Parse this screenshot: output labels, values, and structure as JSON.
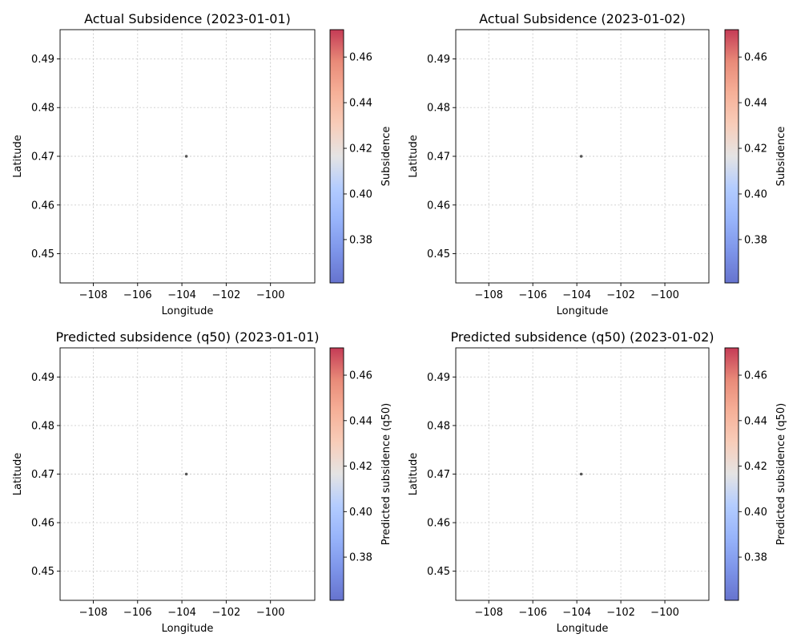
{
  "chart_data": [
    {
      "type": "scatter",
      "title": "Actual Subsidence (2023-01-01)",
      "xlabel": "Longitude",
      "ylabel": "Latitude",
      "colorbar_label": "Subsidence",
      "xlim": [
        -109.5,
        -98.0
      ],
      "ylim": [
        0.444,
        0.496
      ],
      "xticks": [
        -108,
        -106,
        -104,
        -102,
        -100
      ],
      "yticks": [
        0.45,
        0.46,
        0.47,
        0.48,
        0.49
      ],
      "x": [
        -103.8
      ],
      "y": [
        0.47
      ],
      "grid": true,
      "colormap": "coolwarm",
      "colorbar_range": [
        0.361,
        0.472
      ],
      "colorbar_ticks": [
        0.38,
        0.4,
        0.42,
        0.44,
        0.46
      ]
    },
    {
      "type": "scatter",
      "title": "Actual Subsidence (2023-01-02)",
      "xlabel": "Longitude",
      "ylabel": "Latitude",
      "colorbar_label": "Subsidence",
      "xlim": [
        -109.5,
        -98.0
      ],
      "ylim": [
        0.444,
        0.496
      ],
      "xticks": [
        -108,
        -106,
        -104,
        -102,
        -100
      ],
      "yticks": [
        0.45,
        0.46,
        0.47,
        0.48,
        0.49
      ],
      "x": [
        -103.8
      ],
      "y": [
        0.47
      ],
      "grid": true,
      "colormap": "coolwarm",
      "colorbar_range": [
        0.361,
        0.472
      ],
      "colorbar_ticks": [
        0.38,
        0.4,
        0.42,
        0.44,
        0.46
      ]
    },
    {
      "type": "scatter",
      "title": "Predicted subsidence (q50) (2023-01-01)",
      "xlabel": "Longitude",
      "ylabel": "Latitude",
      "colorbar_label": "Predicted subsidence (q50)",
      "xlim": [
        -109.5,
        -98.0
      ],
      "ylim": [
        0.444,
        0.496
      ],
      "xticks": [
        -108,
        -106,
        -104,
        -102,
        -100
      ],
      "yticks": [
        0.45,
        0.46,
        0.47,
        0.48,
        0.49
      ],
      "x": [
        -103.8
      ],
      "y": [
        0.47
      ],
      "grid": true,
      "colormap": "coolwarm",
      "colorbar_range": [
        0.361,
        0.472
      ],
      "colorbar_ticks": [
        0.38,
        0.4,
        0.42,
        0.44,
        0.46
      ]
    },
    {
      "type": "scatter",
      "title": "Predicted subsidence (q50) (2023-01-02)",
      "xlabel": "Longitude",
      "ylabel": "Latitude",
      "colorbar_label": "Predicted subsidence (q50)",
      "xlim": [
        -109.5,
        -98.0
      ],
      "ylim": [
        0.444,
        0.496
      ],
      "xticks": [
        -108,
        -106,
        -104,
        -102,
        -100
      ],
      "yticks": [
        0.45,
        0.46,
        0.47,
        0.48,
        0.49
      ],
      "x": [
        -103.8
      ],
      "y": [
        0.47
      ],
      "grid": true,
      "colormap": "coolwarm",
      "colorbar_range": [
        0.361,
        0.472
      ],
      "colorbar_ticks": [
        0.38,
        0.4,
        0.42,
        0.44,
        0.46
      ]
    }
  ]
}
